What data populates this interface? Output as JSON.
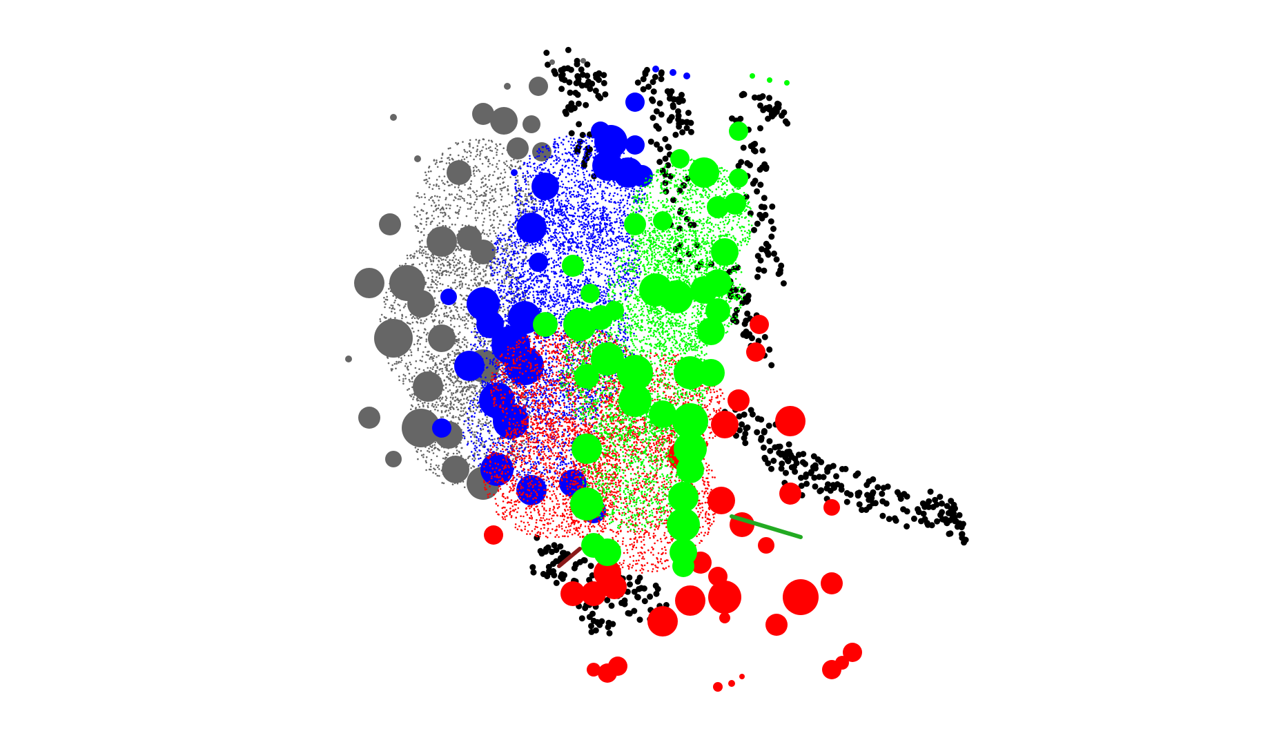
{
  "scene": {
    "background": "#ffffff",
    "description_kind": "3d-point-cloud-render",
    "colors": {
      "black_points": "#000000",
      "gray_cluster": "#666666",
      "blue_cluster": "#0000ff",
      "green_cluster": "#00ff00",
      "red_cluster": "#ff0000",
      "axis_green": "#22aa22",
      "axis_red": "#8b1a1a"
    },
    "clusters": [
      "gray",
      "blue",
      "green",
      "red",
      "black"
    ]
  }
}
